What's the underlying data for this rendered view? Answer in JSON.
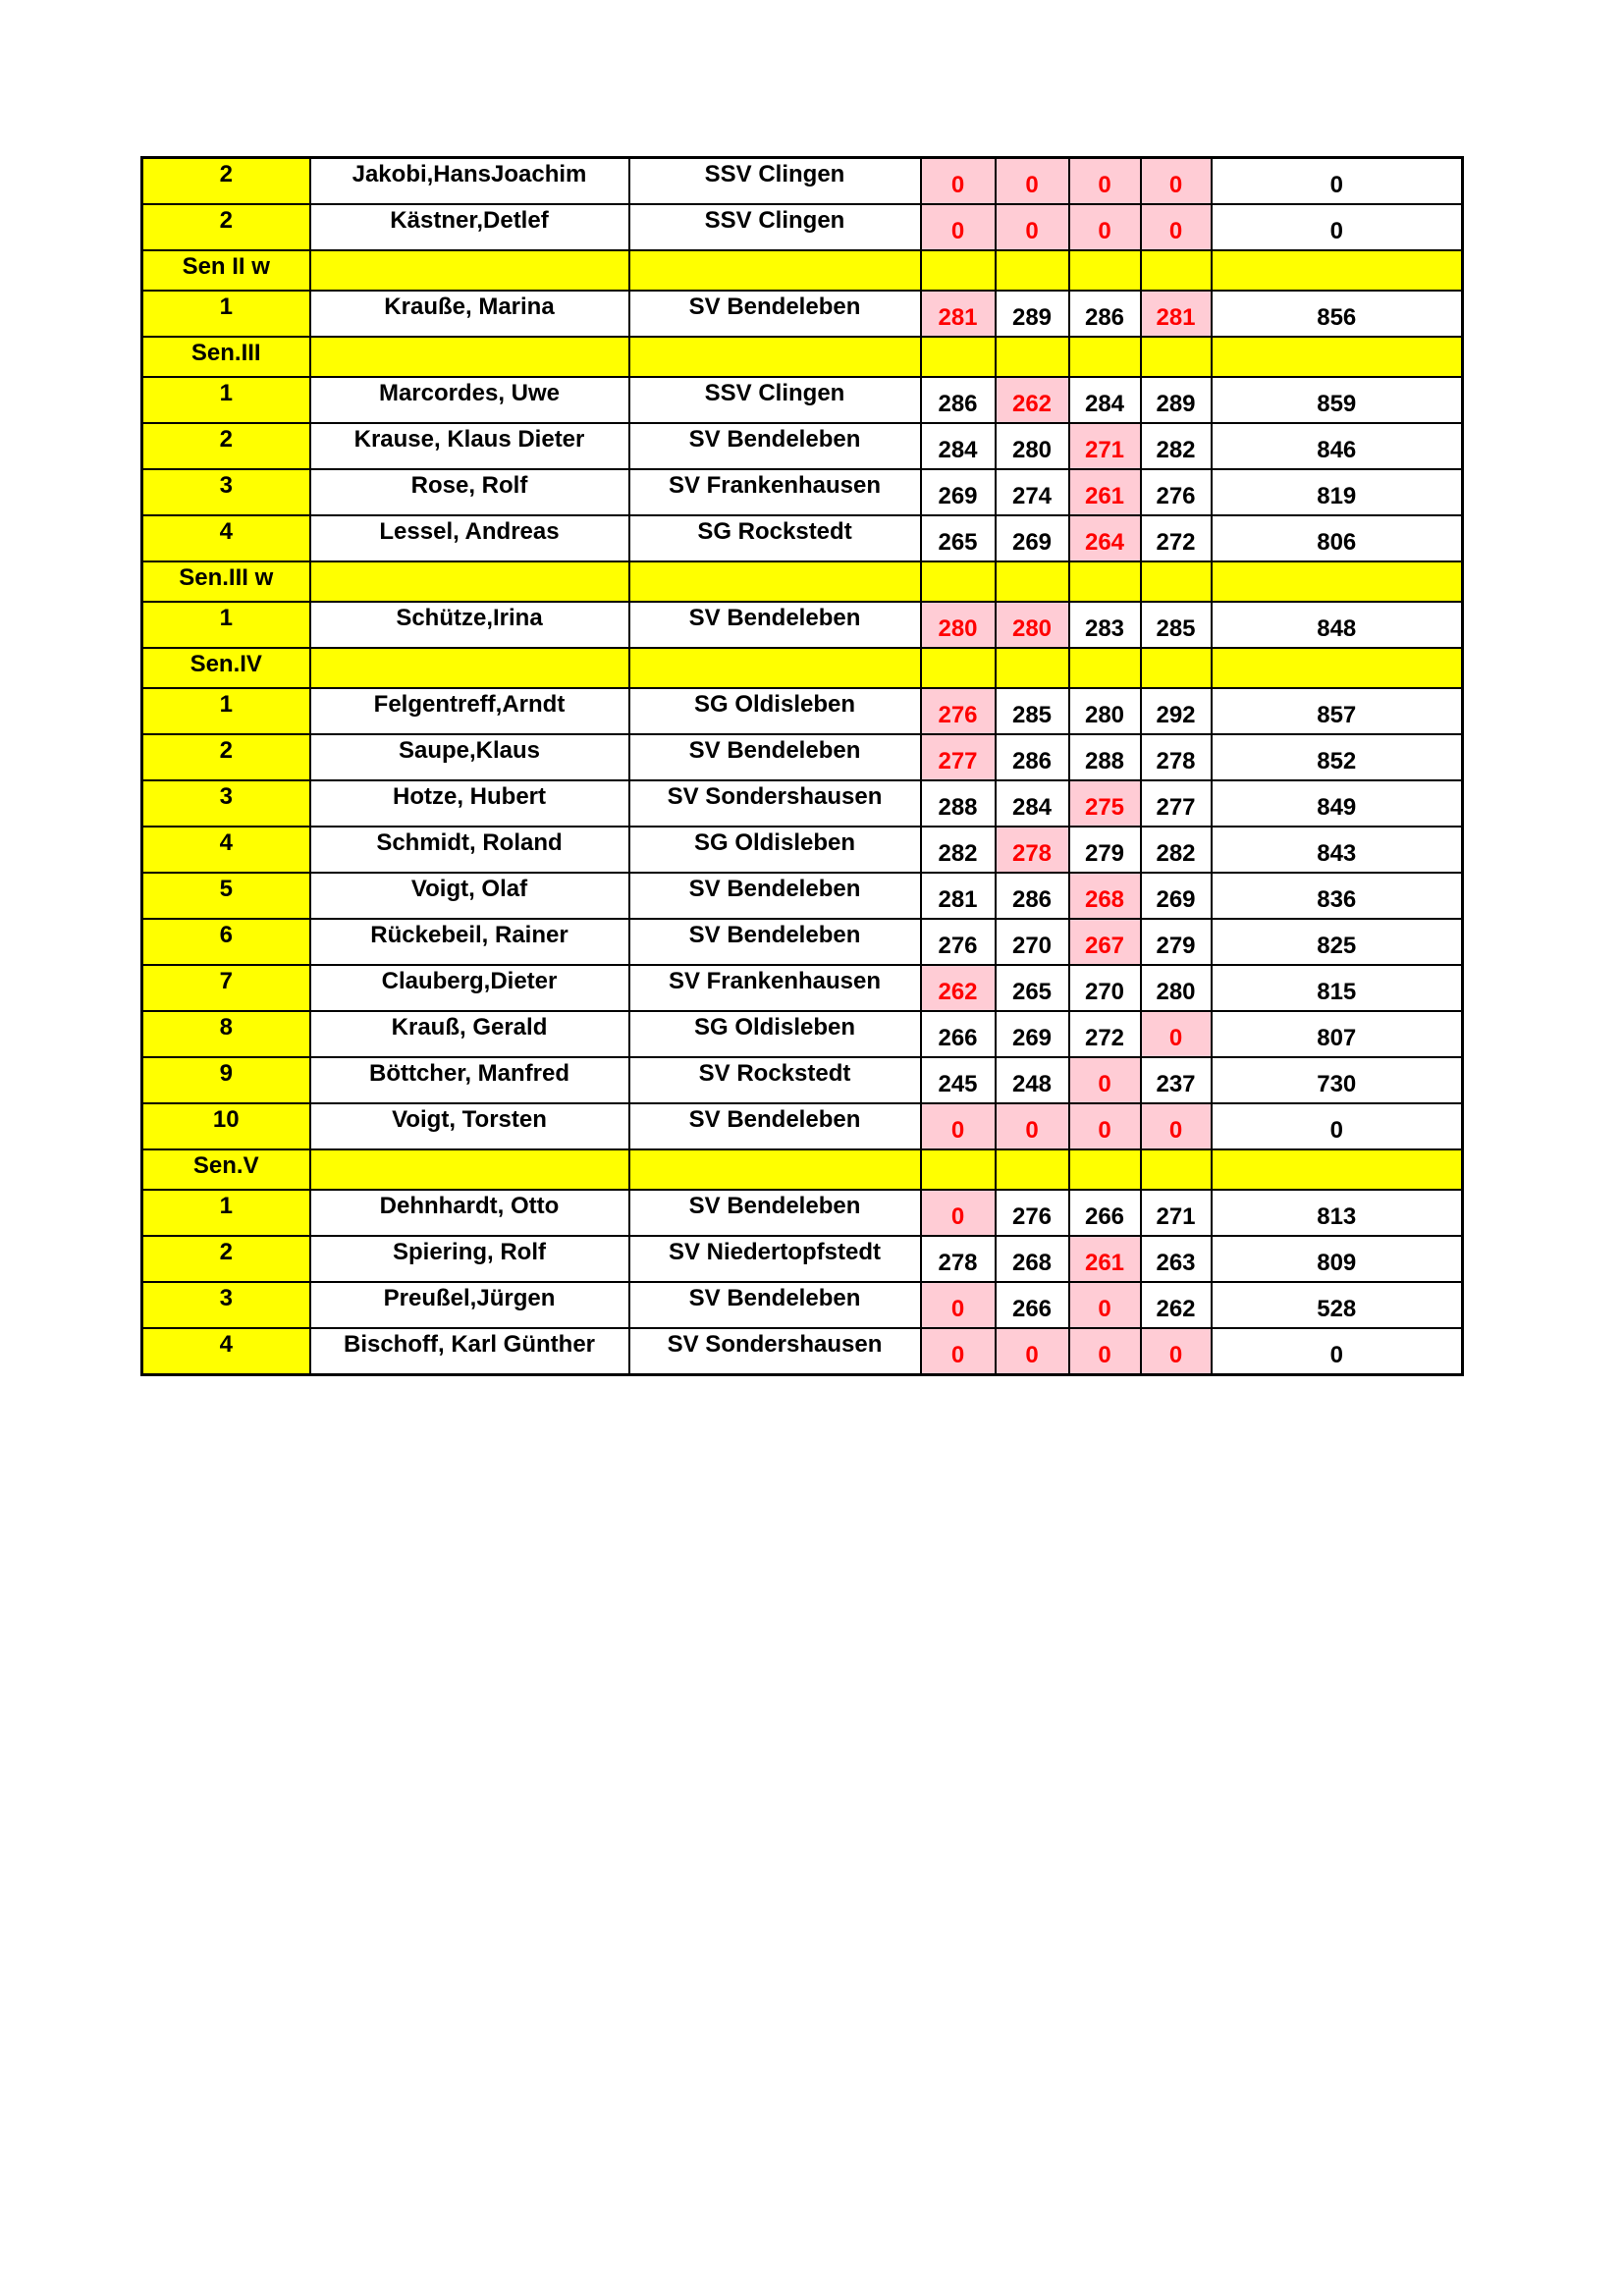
{
  "colors": {
    "category_bg": "#ffff00",
    "place_bg": "#ffff00",
    "low_score_bg": "#ffccd5",
    "low_score_text": "#ff0000"
  },
  "rows": [
    {
      "place": "2",
      "name": "Jakobi,HansJoachim",
      "club": "SSV Clingen",
      "scores": [
        "0",
        "0",
        "0",
        "0"
      ],
      "low": [
        0,
        1,
        2,
        3
      ],
      "total": "0"
    },
    {
      "place": "2",
      "name": "Kästner,Detlef",
      "club": "SSV Clingen",
      "scores": [
        "0",
        "0",
        "0",
        "0"
      ],
      "low": [
        0,
        1,
        2,
        3
      ],
      "total": "0"
    },
    {
      "category": "Sen II w"
    },
    {
      "place": "1",
      "name": "Krauße, Marina",
      "club": "SV Bendeleben",
      "scores": [
        "281",
        "289",
        "286",
        "281"
      ],
      "low": [
        0,
        3
      ],
      "total": "856"
    },
    {
      "category": "Sen.III"
    },
    {
      "place": "1",
      "name": "Marcordes, Uwe",
      "club": "SSV Clingen",
      "scores": [
        "286",
        "262",
        "284",
        "289"
      ],
      "low": [
        1
      ],
      "total": "859"
    },
    {
      "place": "2",
      "name": "Krause, Klaus Dieter",
      "club": "SV Bendeleben",
      "scores": [
        "284",
        "280",
        "271",
        "282"
      ],
      "low": [
        2
      ],
      "total": "846"
    },
    {
      "place": "3",
      "name": "Rose, Rolf",
      "club": "SV Frankenhausen",
      "scores": [
        "269",
        "274",
        "261",
        "276"
      ],
      "low": [
        2
      ],
      "total": "819"
    },
    {
      "place": "4",
      "name": "Lessel, Andreas",
      "club": "SG Rockstedt",
      "scores": [
        "265",
        "269",
        "264",
        "272"
      ],
      "low": [
        2
      ],
      "total": "806"
    },
    {
      "category": "Sen.III w"
    },
    {
      "place": "1",
      "name": "Schütze,Irina",
      "club": "SV Bendeleben",
      "scores": [
        "280",
        "280",
        "283",
        "285"
      ],
      "low": [
        0,
        1
      ],
      "total": "848"
    },
    {
      "category": "Sen.IV"
    },
    {
      "place": "1",
      "name": "Felgentreff,Arndt",
      "club": "SG Oldisleben",
      "scores": [
        "276",
        "285",
        "280",
        "292"
      ],
      "low": [
        0
      ],
      "total": "857"
    },
    {
      "place": "2",
      "name": "Saupe,Klaus",
      "club": "SV Bendeleben",
      "scores": [
        "277",
        "286",
        "288",
        "278"
      ],
      "low": [
        0
      ],
      "total": "852"
    },
    {
      "place": "3",
      "name": "Hotze, Hubert",
      "club": "SV Sondershausen",
      "scores": [
        "288",
        "284",
        "275",
        "277"
      ],
      "low": [
        2
      ],
      "total": "849"
    },
    {
      "place": "4",
      "name": "Schmidt, Roland",
      "club": "SG Oldisleben",
      "scores": [
        "282",
        "278",
        "279",
        "282"
      ],
      "low": [
        1
      ],
      "total": "843"
    },
    {
      "place": "5",
      "name": "Voigt, Olaf",
      "club": "SV Bendeleben",
      "scores": [
        "281",
        "286",
        "268",
        "269"
      ],
      "low": [
        2
      ],
      "total": "836"
    },
    {
      "place": "6",
      "name": "Rückebeil, Rainer",
      "club": "SV Bendeleben",
      "scores": [
        "276",
        "270",
        "267",
        "279"
      ],
      "low": [
        2
      ],
      "total": "825"
    },
    {
      "place": "7",
      "name": "Clauberg,Dieter",
      "club": "SV Frankenhausen",
      "scores": [
        "262",
        "265",
        "270",
        "280"
      ],
      "low": [
        0
      ],
      "total": "815"
    },
    {
      "place": "8",
      "name": "Krauß, Gerald",
      "club": "SG Oldisleben",
      "scores": [
        "266",
        "269",
        "272",
        "0"
      ],
      "low": [
        3
      ],
      "total": "807"
    },
    {
      "place": "9",
      "name": "Böttcher, Manfred",
      "club": "SV Rockstedt",
      "scores": [
        "245",
        "248",
        "0",
        "237"
      ],
      "low": [
        2
      ],
      "total": "730"
    },
    {
      "place": "10",
      "name": "Voigt, Torsten",
      "club": "SV Bendeleben",
      "scores": [
        "0",
        "0",
        "0",
        "0"
      ],
      "low": [
        0,
        1,
        2,
        3
      ],
      "total": "0"
    },
    {
      "category": "Sen.V"
    },
    {
      "place": "1",
      "name": "Dehnhardt, Otto",
      "club": "SV Bendeleben",
      "scores": [
        "0",
        "276",
        "266",
        "271"
      ],
      "low": [
        0
      ],
      "total": "813"
    },
    {
      "place": "2",
      "name": "Spiering, Rolf",
      "club": "SV Niedertopfstedt",
      "scores": [
        "278",
        "268",
        "261",
        "263"
      ],
      "low": [
        2
      ],
      "total": "809"
    },
    {
      "place": "3",
      "name": "Preußel,Jürgen",
      "club": "SV Bendeleben",
      "scores": [
        "0",
        "266",
        "0",
        "262"
      ],
      "low": [
        0,
        2
      ],
      "total": "528"
    },
    {
      "place": "4",
      "name": "Bischoff, Karl Günther",
      "club": "SV Sondershausen",
      "scores": [
        "0",
        "0",
        "0",
        "0"
      ],
      "low": [
        0,
        1,
        2,
        3
      ],
      "total": "0"
    }
  ]
}
